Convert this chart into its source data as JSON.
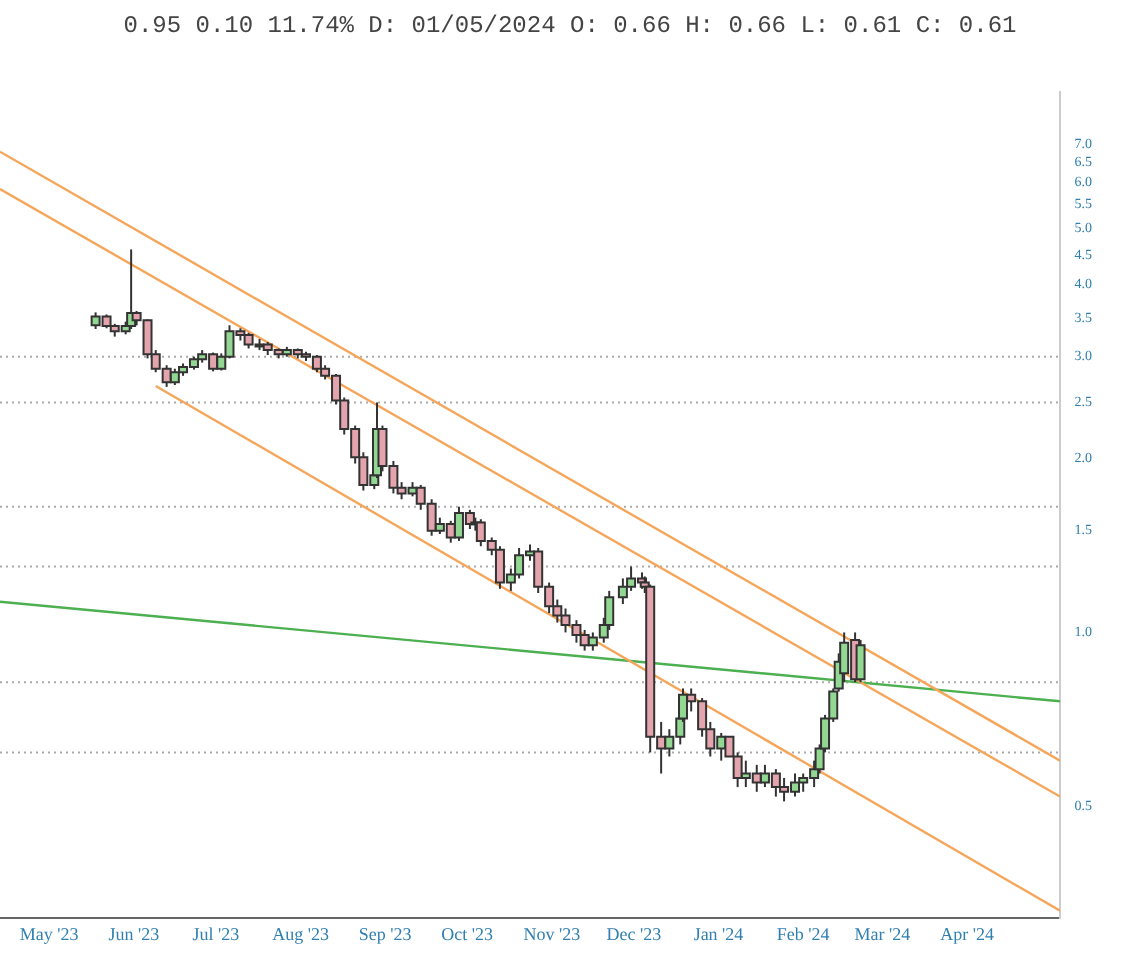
{
  "chart_data": {
    "type": "candlestick",
    "title": "0.95 0.10 11.74% D: 01/05/2024 O: 0.66 H: 0.66 L: 0.61 C: 0.61",
    "log": true,
    "grid": false,
    "legend": false,
    "xlim": [
      "2023-04-13",
      "2024-05-05"
    ],
    "xticks": [
      {
        "value": "2023-05-01",
        "label": "May '23"
      },
      {
        "value": "2023-06-01",
        "label": "Jun '23"
      },
      {
        "value": "2023-07-01",
        "label": "Jul '23"
      },
      {
        "value": "2023-08-01",
        "label": "Aug '23"
      },
      {
        "value": "2023-09-01",
        "label": "Sep '23"
      },
      {
        "value": "2023-10-01",
        "label": "Oct '23"
      },
      {
        "value": "2023-11-01",
        "label": "Nov '23"
      },
      {
        "value": "2023-12-01",
        "label": "Dec '23"
      },
      {
        "value": "2024-01-01",
        "label": "Jan '24"
      },
      {
        "value": "2024-02-01",
        "label": "Feb '24"
      },
      {
        "value": "2024-03-01",
        "label": "Mar '24"
      },
      {
        "value": "2024-04-01",
        "label": "Apr '24"
      }
    ],
    "ylim": [
      0.32,
      8.6
    ],
    "yticks": [
      {
        "value": 0.5,
        "label": "0.5"
      },
      {
        "value": 1,
        "label": "1.0"
      },
      {
        "value": 1.5,
        "label": "1.5"
      },
      {
        "value": 2,
        "label": "2.0"
      },
      {
        "value": 2.5,
        "label": "2.5"
      },
      {
        "value": 3,
        "label": "3.0"
      },
      {
        "value": 3.5,
        "label": "3.5"
      },
      {
        "value": 4,
        "label": "4.0"
      },
      {
        "value": 4.5,
        "label": "4.5"
      },
      {
        "value": 5,
        "label": "5.0"
      },
      {
        "value": 5.5,
        "label": "5.5"
      },
      {
        "value": 6,
        "label": "6.0"
      },
      {
        "value": 6.5,
        "label": "6.5"
      },
      {
        "value": 7,
        "label": "7.0"
      }
    ],
    "ref_lines": [
      {
        "axis": "y",
        "value": 3.0,
        "color": "#aaaaaa",
        "line_style": "dotted"
      },
      {
        "axis": "y",
        "value": 2.5,
        "color": "#aaaaaa",
        "line_style": "dotted"
      },
      {
        "axis": "y",
        "value": 1.65,
        "color": "#aaaaaa",
        "line_style": "dotted"
      },
      {
        "axis": "y",
        "value": 1.3,
        "color": "#aaaaaa",
        "line_style": "dotted"
      },
      {
        "axis": "y",
        "value": 0.82,
        "color": "#aaaaaa",
        "line_style": "dotted"
      },
      {
        "axis": "y",
        "value": 0.62,
        "color": "#aaaaaa",
        "line_style": "dotted"
      }
    ],
    "series": [
      {
        "type": "line",
        "color": "#f5a65b",
        "x": [
          "2023-04-13",
          "2024-05-05"
        ],
        "values": [
          6.79,
          0.6
        ]
      },
      {
        "type": "line",
        "color": "#f5a65b",
        "x": [
          "2023-04-13",
          "2024-05-05"
        ],
        "values": [
          5.85,
          0.52
        ]
      },
      {
        "type": "line",
        "color": "#f5a65b",
        "x": [
          "2023-06-09",
          "2024-05-05"
        ],
        "values": [
          2.67,
          0.33
        ]
      },
      {
        "type": "line",
        "color": "#4caf50",
        "x": [
          "2023-04-13",
          "2024-05-05"
        ],
        "values": [
          1.13,
          0.76
        ]
      }
    ],
    "x": [
      "2023-05-18",
      "2023-05-22",
      "2023-05-25",
      "2023-05-29",
      "2023-05-31",
      "2023-06-02",
      "2023-06-06",
      "2023-06-09",
      "2023-06-13",
      "2023-06-16",
      "2023-06-19",
      "2023-06-23",
      "2023-06-26",
      "2023-06-30",
      "2023-07-03",
      "2023-07-06",
      "2023-07-10",
      "2023-07-13",
      "2023-07-17",
      "2023-07-20",
      "2023-07-24",
      "2023-07-27",
      "2023-07-31",
      "2023-08-03",
      "2023-08-07",
      "2023-08-10",
      "2023-08-14",
      "2023-08-17",
      "2023-08-21",
      "2023-08-24",
      "2023-08-28",
      "2023-08-29",
      "2023-08-31",
      "2023-09-04",
      "2023-09-07",
      "2023-09-11",
      "2023-09-14",
      "2023-09-18",
      "2023-09-21",
      "2023-09-25",
      "2023-09-28",
      "2023-10-02",
      "2023-10-04",
      "2023-10-06",
      "2023-10-10",
      "2023-10-13",
      "2023-10-17",
      "2023-10-20",
      "2023-10-24",
      "2023-10-27",
      "2023-10-31",
      "2023-11-03",
      "2023-11-06",
      "2023-11-10",
      "2023-11-13",
      "2023-11-16",
      "2023-11-20",
      "2023-11-22",
      "2023-11-27",
      "2023-11-30",
      "2023-12-04",
      "2023-12-05",
      "2023-12-07",
      "2023-12-11",
      "2023-12-14",
      "2023-12-18",
      "2023-12-19",
      "2023-12-22",
      "2023-12-26",
      "2023-12-29",
      "2024-01-02",
      "2024-01-05",
      "2024-01-08",
      "2024-01-11",
      "2024-01-15",
      "2024-01-18",
      "2024-01-22",
      "2024-01-25",
      "2024-01-29",
      "2024-02-01",
      "2024-02-05",
      "2024-02-07",
      "2024-02-09",
      "2024-02-12",
      "2024-02-14",
      "2024-02-16",
      "2024-02-20",
      "2024-02-22"
    ],
    "ohlc": [
      [
        3.4,
        3.58,
        3.35,
        3.52
      ],
      [
        3.52,
        3.55,
        3.36,
        3.39
      ],
      [
        3.39,
        3.42,
        3.25,
        3.32
      ],
      [
        3.32,
        3.45,
        3.28,
        3.39
      ],
      [
        3.39,
        4.6,
        3.35,
        3.57
      ],
      [
        3.57,
        3.6,
        3.4,
        3.47
      ],
      [
        3.47,
        3.48,
        2.98,
        3.03
      ],
      [
        3.03,
        3.08,
        2.82,
        2.86
      ],
      [
        2.86,
        2.9,
        2.66,
        2.71
      ],
      [
        2.71,
        2.86,
        2.68,
        2.82
      ],
      [
        2.82,
        2.92,
        2.78,
        2.88
      ],
      [
        2.88,
        3.0,
        2.85,
        2.97
      ],
      [
        2.97,
        3.08,
        2.93,
        3.03
      ],
      [
        3.03,
        3.05,
        2.83,
        2.86
      ],
      [
        2.86,
        3.04,
        2.84,
        3.0
      ],
      [
        3.0,
        3.4,
        2.98,
        3.32
      ],
      [
        3.32,
        3.36,
        3.2,
        3.27
      ],
      [
        3.27,
        3.3,
        3.1,
        3.15
      ],
      [
        3.15,
        3.22,
        3.08,
        3.15
      ],
      [
        3.15,
        3.18,
        3.02,
        3.08
      ],
      [
        3.08,
        3.1,
        2.98,
        3.03
      ],
      [
        3.03,
        3.12,
        3.0,
        3.08
      ],
      [
        3.08,
        3.1,
        2.98,
        3.03
      ],
      [
        3.03,
        3.06,
        2.95,
        3.0
      ],
      [
        3.0,
        3.02,
        2.82,
        2.86
      ],
      [
        2.86,
        2.9,
        2.74,
        2.78
      ],
      [
        2.78,
        2.8,
        2.48,
        2.52
      ],
      [
        2.52,
        2.55,
        2.2,
        2.25
      ],
      [
        2.25,
        2.28,
        1.96,
        2.01
      ],
      [
        2.01,
        2.05,
        1.76,
        1.8
      ],
      [
        1.8,
        1.9,
        1.77,
        1.87
      ],
      [
        1.87,
        2.5,
        1.85,
        2.25
      ],
      [
        2.25,
        2.28,
        1.9,
        1.94
      ],
      [
        1.94,
        1.98,
        1.74,
        1.78
      ],
      [
        1.78,
        1.82,
        1.7,
        1.74
      ],
      [
        1.74,
        1.82,
        1.72,
        1.78
      ],
      [
        1.78,
        1.8,
        1.63,
        1.67
      ],
      [
        1.67,
        1.7,
        1.47,
        1.5
      ],
      [
        1.5,
        1.58,
        1.48,
        1.54
      ],
      [
        1.54,
        1.56,
        1.43,
        1.46
      ],
      [
        1.46,
        1.65,
        1.44,
        1.61
      ],
      [
        1.61,
        1.63,
        1.51,
        1.54
      ],
      [
        1.54,
        1.58,
        1.5,
        1.55
      ],
      [
        1.55,
        1.57,
        1.41,
        1.44
      ],
      [
        1.44,
        1.46,
        1.36,
        1.39
      ],
      [
        1.39,
        1.41,
        1.19,
        1.22
      ],
      [
        1.22,
        1.29,
        1.18,
        1.26
      ],
      [
        1.26,
        1.4,
        1.24,
        1.36
      ],
      [
        1.36,
        1.42,
        1.33,
        1.38
      ],
      [
        1.38,
        1.4,
        1.17,
        1.2
      ],
      [
        1.2,
        1.22,
        1.08,
        1.11
      ],
      [
        1.11,
        1.14,
        1.04,
        1.07
      ],
      [
        1.07,
        1.1,
        1.0,
        1.03
      ],
      [
        1.03,
        1.05,
        0.96,
        0.99
      ],
      [
        0.99,
        1.01,
        0.93,
        0.95
      ],
      [
        0.95,
        1.0,
        0.93,
        0.98
      ],
      [
        0.98,
        1.06,
        0.96,
        1.03
      ],
      [
        1.03,
        1.18,
        1.01,
        1.15
      ],
      [
        1.15,
        1.24,
        1.12,
        1.2
      ],
      [
        1.2,
        1.3,
        1.18,
        1.24
      ],
      [
        1.24,
        1.27,
        1.19,
        1.22
      ],
      [
        1.22,
        1.25,
        1.17,
        1.2
      ],
      [
        1.2,
        1.21,
        0.62,
        0.66
      ],
      [
        0.66,
        0.7,
        0.57,
        0.63
      ],
      [
        0.63,
        0.68,
        0.61,
        0.66
      ],
      [
        0.66,
        0.73,
        0.64,
        0.71
      ],
      [
        0.71,
        0.8,
        0.7,
        0.78
      ],
      [
        0.78,
        0.8,
        0.73,
        0.76
      ],
      [
        0.76,
        0.77,
        0.66,
        0.68
      ],
      [
        0.68,
        0.7,
        0.61,
        0.63
      ],
      [
        0.63,
        0.67,
        0.6,
        0.66
      ],
      [
        0.66,
        0.66,
        0.61,
        0.61
      ],
      [
        0.61,
        0.62,
        0.54,
        0.56
      ],
      [
        0.56,
        0.6,
        0.54,
        0.57
      ],
      [
        0.57,
        0.59,
        0.53,
        0.55
      ],
      [
        0.55,
        0.59,
        0.54,
        0.57
      ],
      [
        0.57,
        0.58,
        0.52,
        0.54
      ],
      [
        0.54,
        0.56,
        0.51,
        0.53
      ],
      [
        0.53,
        0.57,
        0.52,
        0.55
      ],
      [
        0.55,
        0.57,
        0.53,
        0.56
      ],
      [
        0.56,
        0.6,
        0.54,
        0.58
      ],
      [
        0.58,
        0.64,
        0.57,
        0.63
      ],
      [
        0.63,
        0.72,
        0.62,
        0.71
      ],
      [
        0.71,
        0.8,
        0.7,
        0.79
      ],
      [
        0.8,
        0.92,
        0.79,
        0.89
      ],
      [
        0.85,
        1.0,
        0.82,
        0.96
      ],
      [
        0.97,
        1.0,
        0.82,
        0.83
      ],
      [
        0.83,
        0.97,
        0.82,
        0.95
      ]
    ]
  }
}
